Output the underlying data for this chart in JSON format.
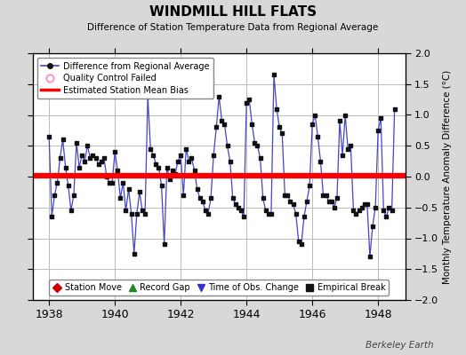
{
  "title": "WINDMILL HILL FLATS",
  "subtitle": "Difference of Station Temperature Data from Regional Average",
  "ylabel": "Monthly Temperature Anomaly Difference (°C)",
  "bias_value": 0.02,
  "ylim": [
    -2,
    2
  ],
  "xlim": [
    1937.5,
    1948.83
  ],
  "xticks": [
    1938,
    1940,
    1942,
    1944,
    1946,
    1948
  ],
  "yticks": [
    -2,
    -1.5,
    -1,
    -0.5,
    0,
    0.5,
    1,
    1.5,
    2
  ],
  "background_color": "#d8d8d8",
  "plot_bg_color": "#ffffff",
  "line_color": "#4444cc",
  "dot_color": "#111111",
  "bias_color": "#ff0000",
  "grid_color": "#bbbbbb",
  "watermark": "Berkeley Earth",
  "time_values": [
    1938.0,
    1938.083,
    1938.167,
    1938.25,
    1938.333,
    1938.417,
    1938.5,
    1938.583,
    1938.667,
    1938.75,
    1938.833,
    1938.917,
    1939.0,
    1939.083,
    1939.167,
    1939.25,
    1939.333,
    1939.417,
    1939.5,
    1939.583,
    1939.667,
    1939.75,
    1939.833,
    1939.917,
    1940.0,
    1940.083,
    1940.167,
    1940.25,
    1940.333,
    1940.417,
    1940.5,
    1940.583,
    1940.667,
    1940.75,
    1940.833,
    1940.917,
    1941.0,
    1941.083,
    1941.167,
    1941.25,
    1941.333,
    1941.417,
    1941.5,
    1941.583,
    1941.667,
    1941.75,
    1941.833,
    1941.917,
    1942.0,
    1942.083,
    1942.167,
    1942.25,
    1942.333,
    1942.417,
    1942.5,
    1942.583,
    1942.667,
    1942.75,
    1942.833,
    1942.917,
    1943.0,
    1943.083,
    1943.167,
    1943.25,
    1943.333,
    1943.417,
    1943.5,
    1943.583,
    1943.667,
    1943.75,
    1943.833,
    1943.917,
    1944.0,
    1944.083,
    1944.167,
    1944.25,
    1944.333,
    1944.417,
    1944.5,
    1944.583,
    1944.667,
    1944.75,
    1944.833,
    1944.917,
    1945.0,
    1945.083,
    1945.167,
    1945.25,
    1945.333,
    1945.417,
    1945.5,
    1945.583,
    1945.667,
    1945.75,
    1945.833,
    1945.917,
    1946.0,
    1946.083,
    1946.167,
    1946.25,
    1946.333,
    1946.417,
    1946.5,
    1946.583,
    1946.667,
    1946.75,
    1946.833,
    1946.917,
    1947.0,
    1947.083,
    1947.167,
    1947.25,
    1947.333,
    1947.417,
    1947.5,
    1947.583,
    1947.667,
    1947.75,
    1947.833,
    1947.917,
    1948.0,
    1948.083,
    1948.167,
    1948.25,
    1948.333,
    1948.417,
    1948.5
  ],
  "diff_values": [
    0.65,
    -0.65,
    -0.3,
    -0.1,
    0.3,
    0.6,
    0.15,
    -0.15,
    -0.55,
    -0.3,
    0.55,
    0.15,
    0.35,
    0.25,
    0.5,
    0.3,
    0.35,
    0.3,
    0.2,
    0.25,
    0.3,
    0.0,
    -0.1,
    -0.1,
    0.4,
    0.1,
    -0.35,
    -0.1,
    -0.55,
    -0.2,
    -0.6,
    -1.25,
    -0.6,
    -0.25,
    -0.55,
    -0.6,
    1.3,
    0.45,
    0.35,
    0.2,
    0.15,
    -0.15,
    -1.1,
    0.15,
    -0.05,
    0.1,
    0.05,
    0.25,
    0.35,
    -0.3,
    0.45,
    0.25,
    0.3,
    0.1,
    -0.2,
    -0.35,
    -0.4,
    -0.55,
    -0.6,
    -0.35,
    0.35,
    0.8,
    1.3,
    0.9,
    0.85,
    0.5,
    0.25,
    -0.35,
    -0.45,
    -0.5,
    -0.55,
    -0.65,
    1.2,
    1.25,
    0.85,
    0.55,
    0.5,
    0.3,
    -0.35,
    -0.55,
    -0.6,
    -0.6,
    1.65,
    1.1,
    0.8,
    0.7,
    -0.3,
    -0.3,
    -0.4,
    -0.45,
    -0.6,
    -1.05,
    -1.1,
    -0.65,
    -0.4,
    -0.15,
    0.85,
    1.0,
    0.65,
    0.25,
    -0.3,
    -0.3,
    -0.4,
    -0.4,
    -0.5,
    -0.35,
    0.9,
    0.35,
    1.0,
    0.45,
    0.5,
    -0.55,
    -0.6,
    -0.55,
    -0.5,
    -0.45,
    -0.45,
    -1.3,
    -0.8,
    -0.5,
    0.75,
    0.95,
    -0.55,
    -0.65,
    -0.5,
    -0.55,
    1.1
  ],
  "top_legend": [
    {
      "label": "Difference from Regional Average",
      "type": "line_dot",
      "color": "#4444cc",
      "dot_color": "#111111"
    },
    {
      "label": "Quality Control Failed",
      "type": "hollow_circle",
      "color": "#ff88cc"
    },
    {
      "label": "Estimated Station Mean Bias",
      "type": "line",
      "color": "#ff0000"
    }
  ],
  "bottom_legend": [
    {
      "label": "Station Move",
      "color": "#cc0000",
      "marker": "D"
    },
    {
      "label": "Record Gap",
      "color": "#228822",
      "marker": "^"
    },
    {
      "label": "Time of Obs. Change",
      "color": "#3333cc",
      "marker": "v"
    },
    {
      "label": "Empirical Break",
      "color": "#111111",
      "marker": "s"
    }
  ]
}
